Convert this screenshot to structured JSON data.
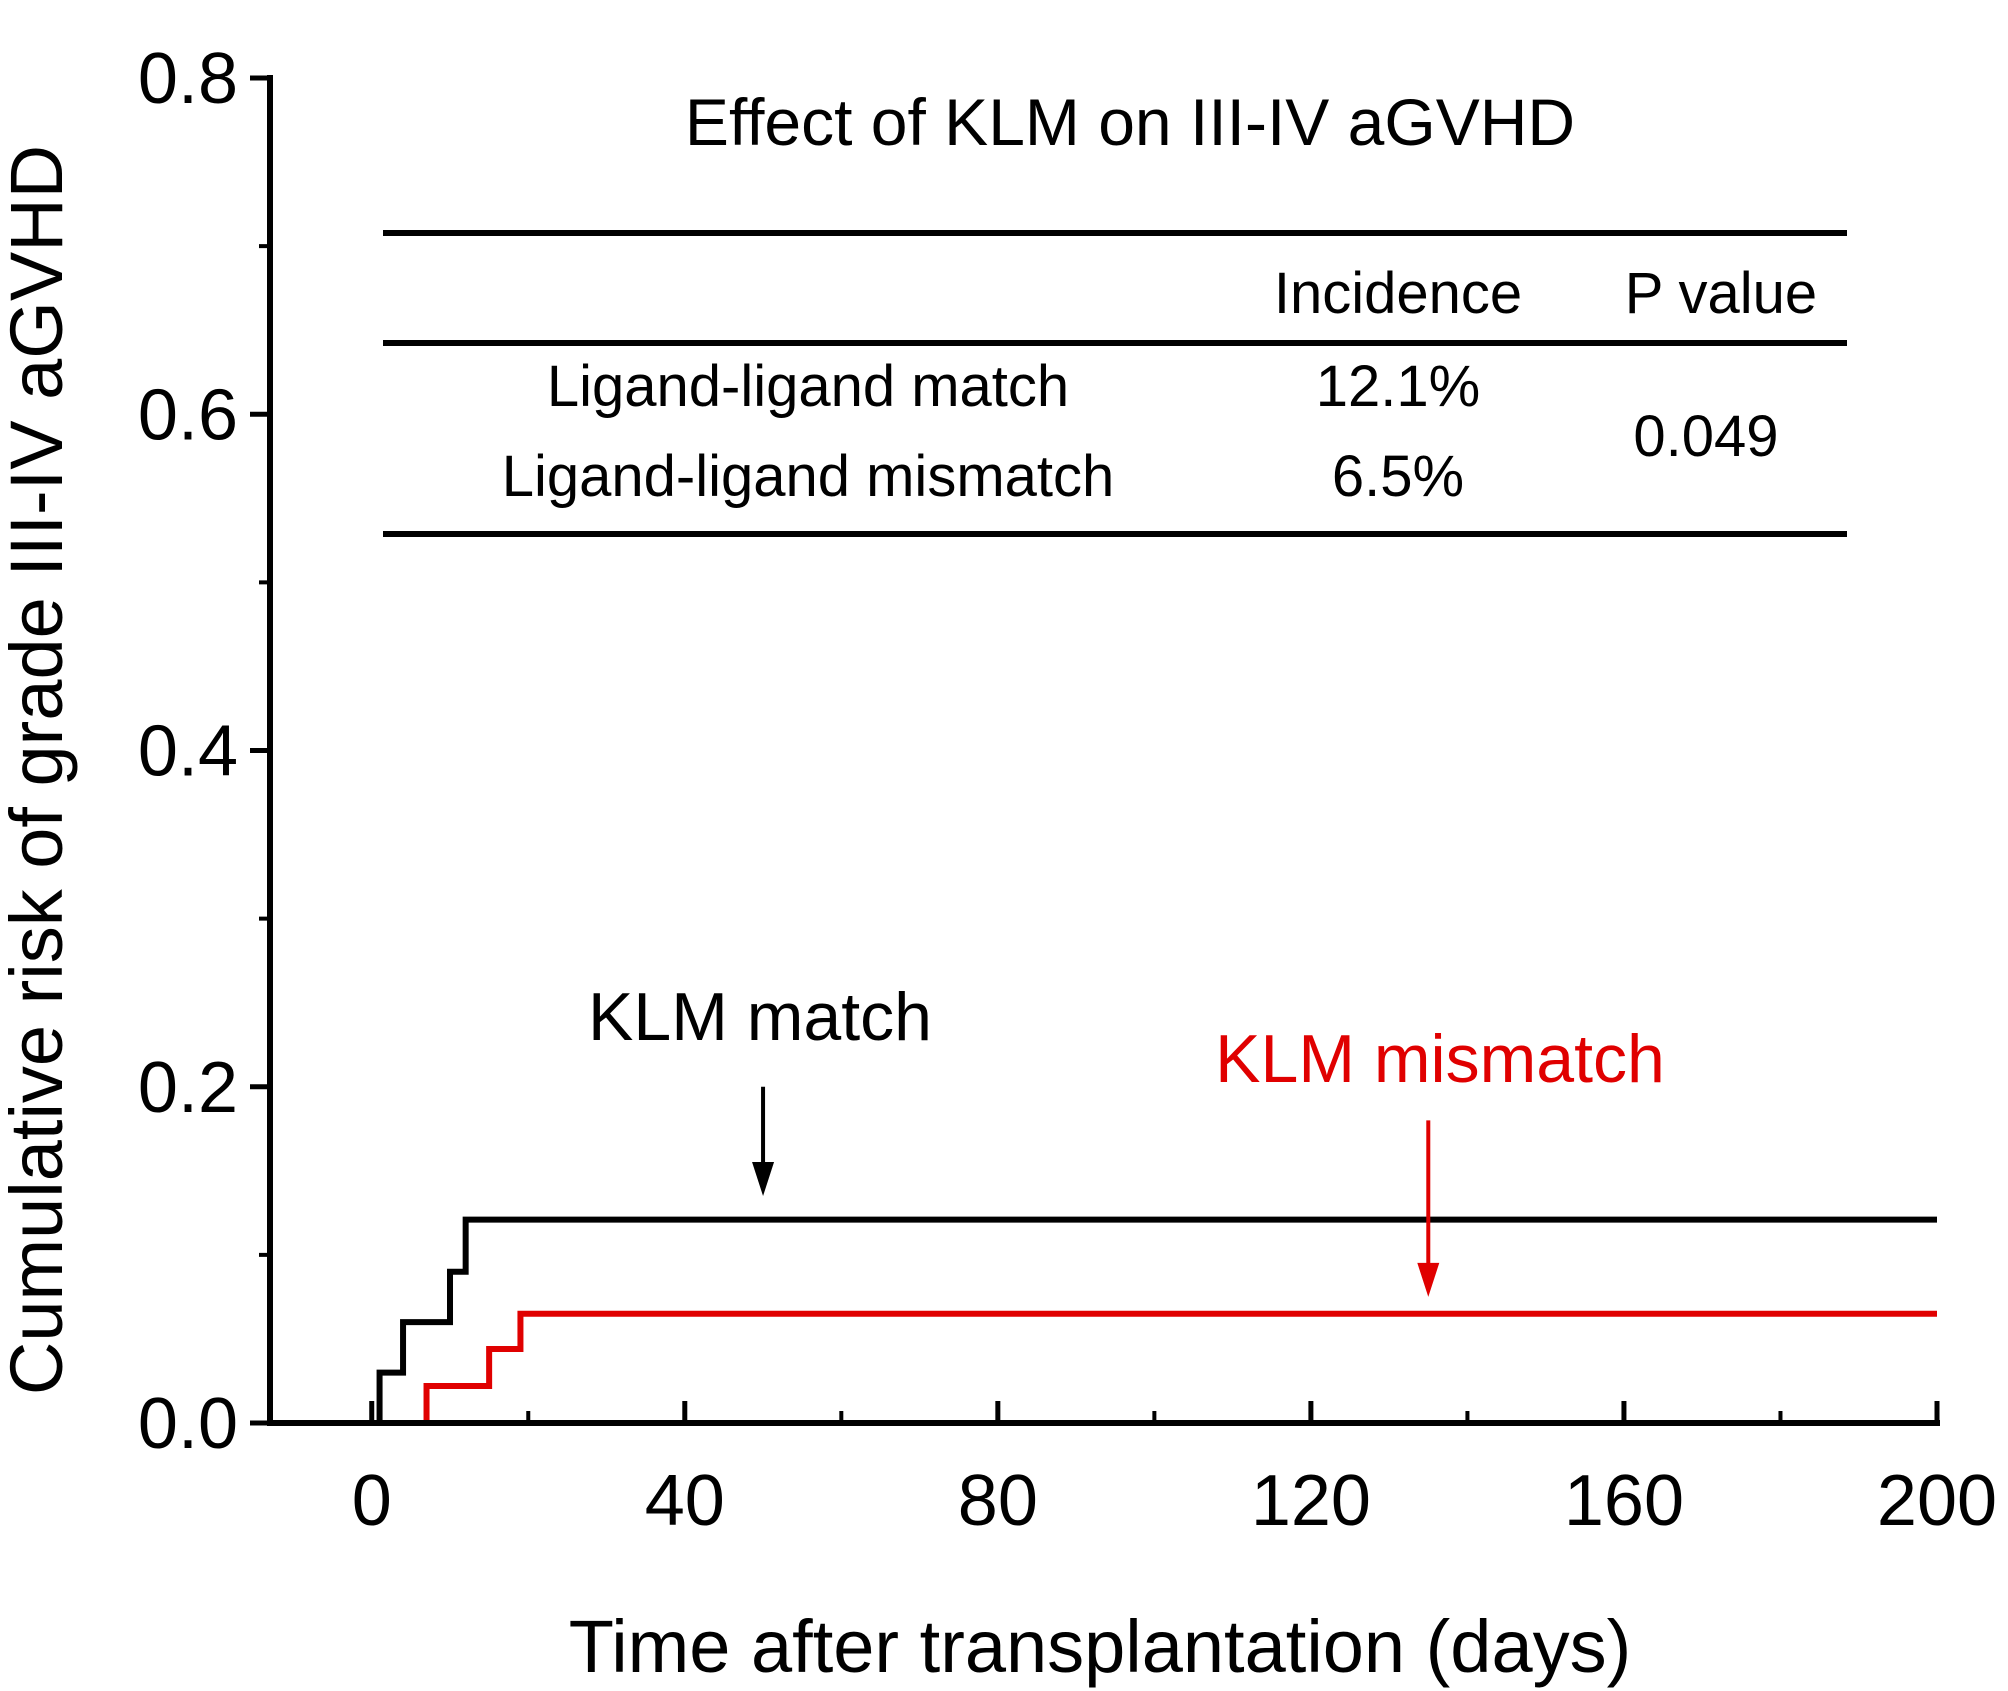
{
  "chart_data": {
    "type": "line",
    "step": true,
    "title": "Effect of KLM on III-IV aGVHD",
    "xlabel": "Time after transplantation (days)",
    "ylabel": "Cumulative risk of grade III-IV aGVHD",
    "xlim": [
      -13,
      200
    ],
    "ylim": [
      0,
      0.8
    ],
    "xticks": [
      0,
      40,
      80,
      120,
      160,
      200
    ],
    "xtick_labels": [
      "0",
      "40",
      "80",
      "120",
      "160",
      "200"
    ],
    "x_minor_ticks": [
      20,
      60,
      100,
      140,
      180
    ],
    "yticks": [
      0.0,
      0.2,
      0.4,
      0.6,
      0.8
    ],
    "ytick_labels": [
      "0.0",
      "0.2",
      "0.4",
      "0.6",
      "0.8"
    ],
    "series": [
      {
        "name": "KLM match",
        "color": "#000000",
        "x": [
          0,
          1,
          4,
          10,
          11,
          12,
          200
        ],
        "y": [
          0.0,
          0.03,
          0.06,
          0.09,
          0.09,
          0.121,
          0.121
        ],
        "label": "KLM match",
        "label_color": "#000000",
        "arrow_x": 50,
        "arrow_tip_y": 0.135,
        "arrow_from_y": 0.2
      },
      {
        "name": "KLM mismatch",
        "color": "#e00000",
        "x": [
          0,
          7,
          15,
          18,
          19,
          200
        ],
        "y": [
          0.0,
          0.022,
          0.044,
          0.044,
          0.065,
          0.065
        ],
        "label": "KLM mismatch",
        "label_color": "#e00000",
        "arrow_x": 135,
        "arrow_tip_y": 0.075,
        "arrow_from_y": 0.18
      }
    ],
    "table": {
      "headers": [
        "",
        "Incidence",
        "P value"
      ],
      "rows": [
        {
          "group": "Ligand-ligand match",
          "incidence": "12.1%"
        },
        {
          "group": "Ligand-ligand mismatch",
          "incidence": "6.5%"
        }
      ],
      "p_value": "0.049"
    }
  }
}
